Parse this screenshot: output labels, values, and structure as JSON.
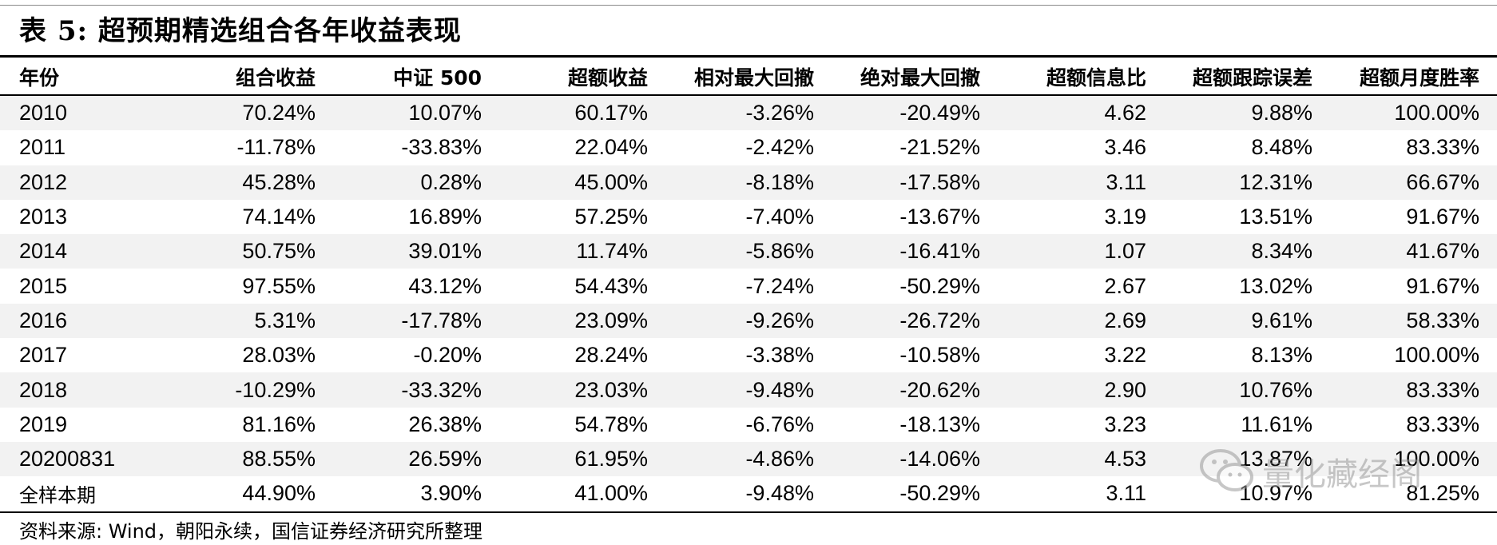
{
  "title": "表 5: 超预期精选组合各年收益表现",
  "table": {
    "headers": [
      "年份",
      "组合收益",
      "中证 500",
      "超额收益",
      "相对最大回撤",
      "绝对最大回撤",
      "超额信息比",
      "超额跟踪误差",
      "超额月度胜率"
    ],
    "rows": [
      [
        "2010",
        "70.24%",
        "10.07%",
        "60.17%",
        "-3.26%",
        "-20.49%",
        "4.62",
        "9.88%",
        "100.00%"
      ],
      [
        "2011",
        "-11.78%",
        "-33.83%",
        "22.04%",
        "-2.42%",
        "-21.52%",
        "3.46",
        "8.48%",
        "83.33%"
      ],
      [
        "2012",
        "45.28%",
        "0.28%",
        "45.00%",
        "-8.18%",
        "-17.58%",
        "3.11",
        "12.31%",
        "66.67%"
      ],
      [
        "2013",
        "74.14%",
        "16.89%",
        "57.25%",
        "-7.40%",
        "-13.67%",
        "3.19",
        "13.51%",
        "91.67%"
      ],
      [
        "2014",
        "50.75%",
        "39.01%",
        "11.74%",
        "-5.86%",
        "-16.41%",
        "1.07",
        "8.34%",
        "41.67%"
      ],
      [
        "2015",
        "97.55%",
        "43.12%",
        "54.43%",
        "-7.24%",
        "-50.29%",
        "2.67",
        "13.02%",
        "91.67%"
      ],
      [
        "2016",
        "5.31%",
        "-17.78%",
        "23.09%",
        "-9.26%",
        "-26.72%",
        "2.69",
        "9.61%",
        "58.33%"
      ],
      [
        "2017",
        "28.03%",
        "-0.20%",
        "28.24%",
        "-3.38%",
        "-10.58%",
        "3.22",
        "8.13%",
        "100.00%"
      ],
      [
        "2018",
        "-10.29%",
        "-33.32%",
        "23.03%",
        "-9.48%",
        "-20.62%",
        "2.90",
        "10.76%",
        "83.33%"
      ],
      [
        "2019",
        "81.16%",
        "26.38%",
        "54.78%",
        "-6.76%",
        "-18.13%",
        "3.23",
        "11.61%",
        "83.33%"
      ],
      [
        "20200831",
        "88.55%",
        "26.59%",
        "61.95%",
        "-4.86%",
        "-14.06%",
        "4.53",
        "13.87%",
        "100.00%"
      ],
      [
        "全样本期",
        "44.90%",
        "3.90%",
        "41.00%",
        "-9.48%",
        "-50.29%",
        "3.11",
        "10.97%",
        "81.25%"
      ]
    ]
  },
  "source": "资料来源: Wind，朝阳永续，国信证券经济研究所整理",
  "watermark": {
    "text": "量化藏经阁",
    "icon": "wechat-icon"
  }
}
